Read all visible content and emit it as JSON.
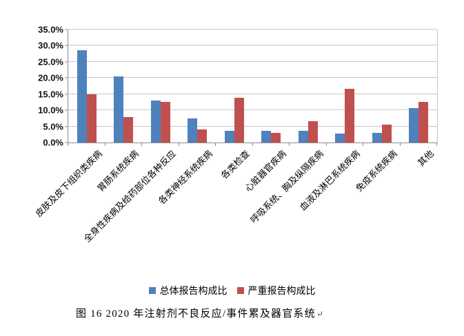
{
  "chart_data": {
    "type": "bar",
    "title": "",
    "xlabel": "",
    "ylabel": "",
    "categories": [
      "皮肤及皮下组织类疾病",
      "胃肠系统疾病",
      "全身性疾病及给药部位各种反应",
      "各类神经系统疾病",
      "各类检查",
      "心脏器官疾病",
      "呼吸系统、胸及纵隔疾病",
      "血液及淋巴系统疾病",
      "免疫系统疾病",
      "其他"
    ],
    "series": [
      {
        "name": "总体报告构成比",
        "color": "#4F81BD",
        "values": [
          28.7,
          20.5,
          13.0,
          7.5,
          3.7,
          3.7,
          3.7,
          2.8,
          3.0,
          10.7
        ]
      },
      {
        "name": "严重报告构成比",
        "color": "#C0504D",
        "values": [
          15.0,
          8.0,
          12.6,
          4.0,
          13.9,
          3.0,
          6.7,
          16.7,
          5.5,
          12.5
        ]
      }
    ],
    "ylim": [
      0,
      35
    ],
    "ytick_step": 5,
    "yticks": [
      "0.0%",
      "5.0%",
      "10.0%",
      "15.0%",
      "20.0%",
      "25.0%",
      "30.0%",
      "35.0%"
    ],
    "grid": true,
    "legend_position": "bottom"
  },
  "caption": {
    "text": "图 16  2020 年注射剂不良反应/事件累及器官系统",
    "return_mark": "↵"
  },
  "colors": {
    "series_overall": "#4F81BD",
    "series_serious": "#C0504D",
    "gridline": "#c6c6c6",
    "axis": "#8c8c8c"
  }
}
